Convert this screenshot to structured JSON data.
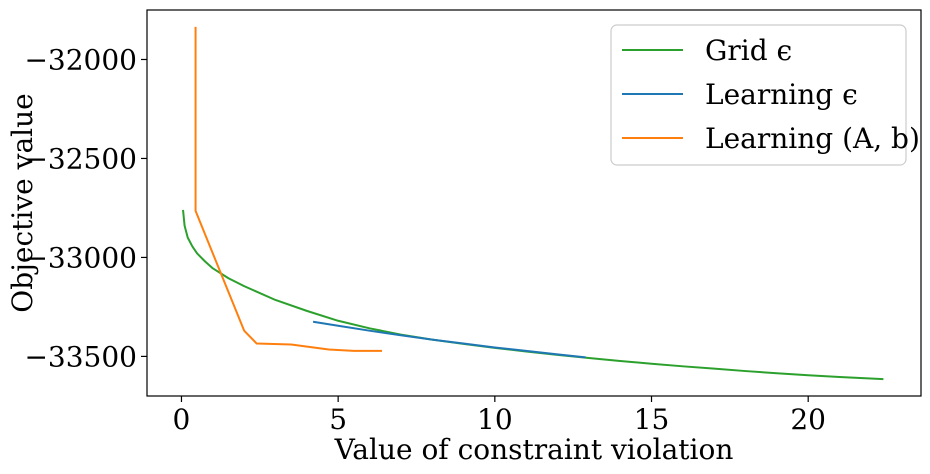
{
  "chart_data": {
    "type": "line",
    "xlabel": "Value of constraint violation",
    "ylabel": "Objective value",
    "xlim": [
      -1.1,
      23.6
    ],
    "ylim": [
      -33700,
      -31750
    ],
    "xticks": [
      0,
      5,
      10,
      15,
      20
    ],
    "xtick_labels": [
      "0",
      "5",
      "10",
      "15",
      "20"
    ],
    "yticks": [
      -32000,
      -32500,
      -33000,
      -33500
    ],
    "ytick_labels": [
      "−32000",
      "−32500",
      "−33000",
      "−33500"
    ],
    "grid": false,
    "legend_position": "top-right",
    "series": [
      {
        "name": "Grid ϵ",
        "color": "#2ca02c",
        "points": [
          [
            0.05,
            -32760
          ],
          [
            0.1,
            -32840
          ],
          [
            0.2,
            -32900
          ],
          [
            0.35,
            -32945
          ],
          [
            0.5,
            -32980
          ],
          [
            0.75,
            -33020
          ],
          [
            1.0,
            -33055
          ],
          [
            1.5,
            -33105
          ],
          [
            2.0,
            -33145
          ],
          [
            3.0,
            -33215
          ],
          [
            4.0,
            -33270
          ],
          [
            5.0,
            -33320
          ],
          [
            6.0,
            -33358
          ],
          [
            7.0,
            -33390
          ],
          [
            8.0,
            -33415
          ],
          [
            9.0,
            -33437
          ],
          [
            10.0,
            -33457
          ],
          [
            11.0,
            -33475
          ],
          [
            12.0,
            -33492
          ],
          [
            13.0,
            -33508
          ],
          [
            14.0,
            -33523
          ],
          [
            15.0,
            -33537
          ],
          [
            16.0,
            -33550
          ],
          [
            17.0,
            -33562
          ],
          [
            18.0,
            -33574
          ],
          [
            19.0,
            -33585
          ],
          [
            20.0,
            -33595
          ],
          [
            21.0,
            -33604
          ],
          [
            22.4,
            -33615
          ]
        ]
      },
      {
        "name": "Learning ϵ",
        "color": "#1f77b4",
        "points": [
          [
            4.2,
            -33325
          ],
          [
            5.0,
            -33345
          ],
          [
            6.0,
            -33370
          ],
          [
            7.0,
            -33393
          ],
          [
            8.0,
            -33415
          ],
          [
            9.0,
            -33435
          ],
          [
            10.0,
            -33455
          ],
          [
            11.0,
            -33472
          ],
          [
            12.0,
            -33490
          ],
          [
            12.9,
            -33505
          ]
        ]
      },
      {
        "name": "Learning (A, b)",
        "color": "#ff7f0e",
        "points": [
          [
            0.45,
            -31835
          ],
          [
            0.45,
            -32765
          ],
          [
            2.0,
            -33370
          ],
          [
            2.4,
            -33435
          ],
          [
            3.5,
            -33440
          ],
          [
            4.7,
            -33465
          ],
          [
            5.5,
            -33472
          ],
          [
            6.4,
            -33472
          ]
        ]
      }
    ]
  }
}
